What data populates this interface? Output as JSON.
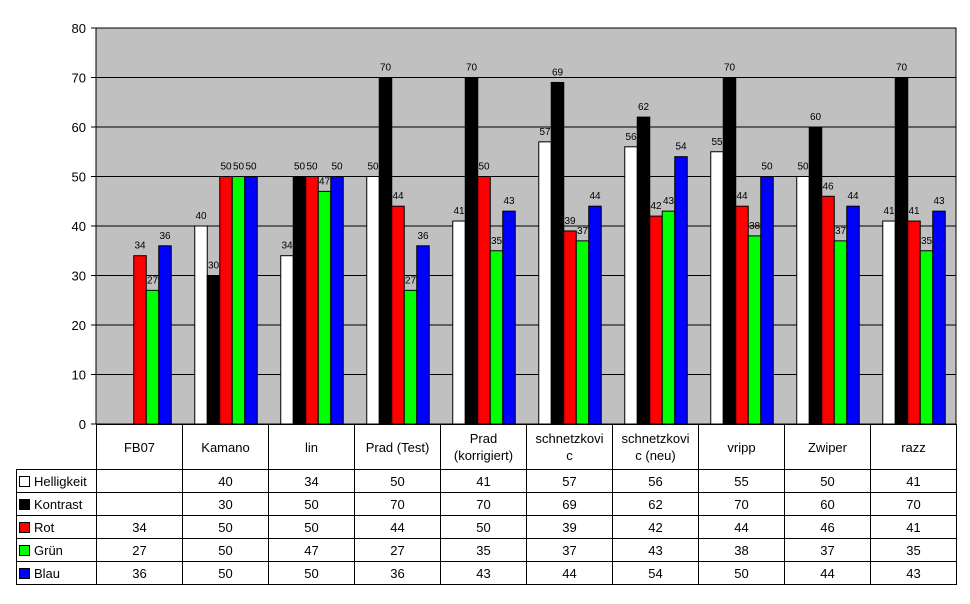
{
  "chart_data": {
    "type": "bar",
    "categories": [
      "FB07",
      "Kamano",
      "lin",
      "Prad (Test)",
      "Prad (korrigiert)",
      "schnetzkovic",
      "schnetzkovic (neu)",
      "vripp",
      "Zwiper",
      "razz"
    ],
    "category_display": [
      "FB07",
      "Kamano",
      "lin",
      "Prad (Test)",
      "Prad\n(korrigiert)",
      "schnetzkovi\nc",
      "schnetzkovi\nc (neu)",
      "vripp",
      "Zwiper",
      "razz"
    ],
    "series": [
      {
        "name": "Helligkeit",
        "color": "#ffffff",
        "values": [
          null,
          40,
          34,
          50,
          41,
          57,
          56,
          55,
          50,
          41
        ]
      },
      {
        "name": "Kontrast",
        "color": "#000000",
        "values": [
          null,
          30,
          50,
          70,
          70,
          69,
          62,
          70,
          60,
          70
        ]
      },
      {
        "name": "Rot",
        "color": "#ff0000",
        "values": [
          34,
          50,
          50,
          44,
          50,
          39,
          42,
          44,
          46,
          41
        ]
      },
      {
        "name": "Grün",
        "color": "#00ff00",
        "values": [
          27,
          50,
          47,
          27,
          35,
          37,
          43,
          38,
          37,
          35
        ]
      },
      {
        "name": "Blau",
        "color": "#0000ff",
        "values": [
          36,
          50,
          50,
          36,
          43,
          44,
          54,
          50,
          44,
          43
        ]
      }
    ],
    "ylim": [
      0,
      80
    ],
    "yticks": [
      0,
      10,
      20,
      30,
      40,
      50,
      60,
      70,
      80
    ],
    "grid": true,
    "plot_background": "#c0c0c0",
    "legend": "data-table"
  }
}
